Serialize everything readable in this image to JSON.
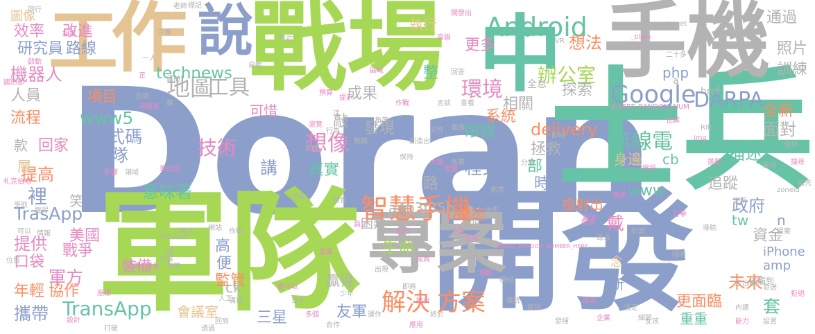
{
  "image": {
    "type": "word-cloud",
    "palette": [
      "#8c9fcb",
      "#a6d855",
      "#66c3a5",
      "#fc8d62",
      "#e78ac3",
      "#e5c494",
      "#b3b3b3",
      "#ffd92f"
    ]
  },
  "words": [
    {
      "text": "Doran",
      "color": "#8c9fcb",
      "rot": 0
    },
    {
      "text": "士兵",
      "color": "#66c3a5",
      "rot": 0
    },
    {
      "text": "軍隊",
      "color": "#a6d855",
      "rot": 0
    },
    {
      "text": "開發",
      "color": "#8c9fcb",
      "rot": 0
    },
    {
      "text": "戰場",
      "color": "#a6d855",
      "rot": 0
    },
    {
      "text": "手機",
      "color": "#b3b3b3",
      "rot": 0
    },
    {
      "text": "中",
      "color": "#66c3a5",
      "rot": 0
    },
    {
      "text": "專案",
      "color": "#b3b3b3",
      "rot": 0
    },
    {
      "text": "作",
      "color": "#e5c494",
      "rot": 0
    },
    {
      "text": "說",
      "color": "#8c9fcb",
      "rot": 0
    },
    {
      "text": "工",
      "color": "#e5c494",
      "rot": 0
    },
    {
      "text": "智慧",
      "color": "#fc8d62",
      "rot": 0
    },
    {
      "text": "手機",
      "color": "#fc8d62",
      "rot": 0
    },
    {
      "text": "Android",
      "color": "#66c3a5",
      "rot": 0
    },
    {
      "text": "Google",
      "color": "#8c9fcb",
      "rot": 0
    },
    {
      "text": "DARPA",
      "color": "#8c9fcb",
      "rot": 0
    },
    {
      "text": "地圖",
      "color": "#b3b3b3",
      "rot": 0
    },
    {
      "text": "工具",
      "color": "#b3b3b3",
      "rot": 0
    },
    {
      "text": "環境",
      "color": "#e78ac3",
      "rot": 0
    },
    {
      "text": "辦公室",
      "color": "#a6d855",
      "rot": 0
    },
    {
      "text": "解決",
      "color": "#fc8d62",
      "rot": 0
    },
    {
      "text": "方案",
      "color": "#fc8d62",
      "rot": 0
    },
    {
      "text": "TrasApp",
      "color": "#8c9fcb",
      "rot": 0
    },
    {
      "text": "TransApp",
      "color": "#66c3a5",
      "rot": 0
    },
    {
      "text": "技術",
      "color": "#e78ac3",
      "rot": 0
    },
    {
      "text": "想像",
      "color": "#e78ac3",
      "rot": 0
    },
    {
      "text": "無線電",
      "color": "#66c3a5",
      "rot": 0
    },
    {
      "text": "項目",
      "color": "#fc8d62",
      "rot": 0
    },
    {
      "text": "www5",
      "color": "#66c3a5",
      "rot": 0
    },
    {
      "text": "程式碼",
      "color": "#8c9fcb",
      "rot": 0
    },
    {
      "text": "團隊",
      "color": "#8c9fcb",
      "rot": 0
    },
    {
      "text": "研究員",
      "color": "#8c9fcb",
      "rot": 0
    },
    {
      "text": "路線",
      "color": "#8c9fcb",
      "rot": 0
    },
    {
      "text": "效率",
      "color": "#e78ac3",
      "rot": 0
    },
    {
      "text": "改進",
      "color": "#e78ac3",
      "rot": 0
    },
    {
      "text": "機器人",
      "color": "#e78ac3",
      "rot": 0
    },
    {
      "text": "人員",
      "color": "#b3b3b3",
      "rot": 0
    },
    {
      "text": "流程",
      "color": "#fc8d62",
      "rot": 0
    },
    {
      "text": "technews",
      "color": "#66c3a5",
      "rot": 0
    },
    {
      "text": "成果",
      "color": "#b3b3b3",
      "rot": 0
    },
    {
      "text": "可惜",
      "color": "#e78ac3",
      "rot": 0
    },
    {
      "text": "發現",
      "color": "#b3b3b3",
      "rot": 0
    },
    {
      "text": "delivery",
      "color": "#fc8d62",
      "rot": 0
    },
    {
      "text": "描述",
      "color": "#66c3a5",
      "rot": 0
    },
    {
      "text": "面對",
      "color": "#b3b3b3",
      "rot": 0
    },
    {
      "text": "身邊",
      "color": "#e5c494",
      "rot": 0
    },
    {
      "text": "cb",
      "color": "#66c3a5",
      "rot": 0
    },
    {
      "text": "追蹤",
      "color": "#b3b3b3",
      "rot": 0
    },
    {
      "text": "程式",
      "color": "#8c9fcb",
      "rot": 0
    },
    {
      "text": "眼鏡",
      "color": "#66c3a5",
      "rot": 0
    },
    {
      "text": "拯救",
      "color": "#b3b3b3",
      "rot": 0
    },
    {
      "text": "講",
      "color": "#8c9fcb",
      "rot": 0
    },
    {
      "text": "真實",
      "color": "#66c3a5",
      "rot": 0
    },
    {
      "text": "意味著",
      "color": "#66c3a5",
      "rot": 0
    },
    {
      "text": "a4b3f35b",
      "color": "#b3b3b3",
      "rot": 0
    },
    {
      "text": "投射出",
      "color": "#fc8d62",
      "rot": 0
    },
    {
      "text": "提供",
      "color": "#e78ac3",
      "rot": 0
    },
    {
      "text": "美國",
      "color": "#e78ac3",
      "rot": 0
    },
    {
      "text": "戰爭",
      "color": "#e78ac3",
      "rot": 0
    },
    {
      "text": "口袋",
      "color": "#e78ac3",
      "rot": 0
    },
    {
      "text": "裝備",
      "color": "#e78ac3",
      "rot": 0
    },
    {
      "text": "軍方",
      "color": "#e78ac3",
      "rot": 0
    },
    {
      "text": "年輕",
      "color": "#fc8d62",
      "rot": 0
    },
    {
      "text": "協作",
      "color": "#fc8d62",
      "rot": 0
    },
    {
      "text": "攜帶",
      "color": "#8c9fcb",
      "rot": 0
    },
    {
      "text": "會議室",
      "color": "#e5c494",
      "rot": 0
    },
    {
      "text": "三星",
      "color": "#8c9fcb",
      "rot": 0
    },
    {
      "text": "友軍",
      "color": "#8c9fcb",
      "rot": 0
    },
    {
      "text": "生命",
      "color": "#a6d855",
      "rot": 0
    },
    {
      "text": "政府",
      "color": "#8c9fcb",
      "rot": 0
    },
    {
      "text": "資金",
      "color": "#b3b3b3",
      "rot": 0
    },
    {
      "text": "未來",
      "color": "#fc8d62",
      "rot": 0
    },
    {
      "text": "iPhone",
      "color": "#8c9fcb",
      "rot": 0
    },
    {
      "text": "amp",
      "color": "#8c9fcb",
      "rot": 0
    },
    {
      "text": "更面臨",
      "color": "#fc8d62",
      "rot": 0
    },
    {
      "text": "重重",
      "color": "#66c3a5",
      "rot": 0
    },
    {
      "text": "全新",
      "color": "#fc8d62",
      "rot": 0
    },
    {
      "text": "系統",
      "color": "#fc8d62",
      "rot": 0
    },
    {
      "text": "想法",
      "color": "#fc8d62",
      "rot": 0
    },
    {
      "text": "通過",
      "color": "#b3b3b3",
      "rot": 0
    },
    {
      "text": "照片",
      "color": "#b3b3b3",
      "rot": 0
    },
    {
      "text": "訓練",
      "color": "#b3b3b3",
      "rot": 0
    },
    {
      "text": "探索",
      "color": "#b3b3b3",
      "rot": 0
    },
    {
      "text": "相關",
      "color": "#b3b3b3",
      "rot": 0
    },
    {
      "text": "php",
      "color": "#8c9fcb",
      "rot": 0
    },
    {
      "text": "更多",
      "color": "#e78ac3",
      "rot": 0
    },
    {
      "text": "執行",
      "color": "#e5c494",
      "rot": 0
    },
    {
      "text": "困難",
      "color": "#b3b3b3",
      "rot": 0
    },
    {
      "text": "原因",
      "color": "#fc8d62",
      "rot": 0
    },
    {
      "text": "高",
      "color": "#8c9fcb",
      "rot": 0
    },
    {
      "text": "便",
      "color": "#8c9fcb",
      "rot": 0
    },
    {
      "text": "監管",
      "color": "#fc8d62",
      "rot": 0
    },
    {
      "text": "新",
      "color": "#8c9fcb",
      "rot": 0
    },
    {
      "text": "念",
      "color": "#e5c494",
      "rot": 0
    },
    {
      "text": "贏得",
      "color": "#b3b3b3",
      "rot": 0
    },
    {
      "text": "www",
      "color": "#66c3a5",
      "rot": 0
    },
    {
      "text": "tw",
      "color": "#66c3a5",
      "rot": 0
    },
    {
      "text": "n",
      "color": "#8c9fcb",
      "rot": 0
    },
    {
      "text": "ck",
      "color": "#b3b3b3",
      "rot": 0
    },
    {
      "text": "套",
      "color": "#66c3a5",
      "rot": 0
    },
    {
      "text": "裡",
      "color": "#8c9fcb",
      "rot": 0
    },
    {
      "text": "提高",
      "color": "#fc8d62",
      "rot": 0
    },
    {
      "text": "款",
      "color": "#b3b3b3",
      "rot": 0
    },
    {
      "text": "回家",
      "color": "#e78ac3",
      "rot": 0
    },
    {
      "text": "層",
      "color": "#e5c494",
      "rot": 0
    },
    {
      "text": "整",
      "color": "#66c3a5",
      "rot": 0
    },
    {
      "text": "部",
      "color": "#66c3a5",
      "rot": 0
    },
    {
      "text": "時",
      "color": "#8c9fcb",
      "rot": 0
    },
    {
      "text": "戴",
      "color": "#e78ac3",
      "rot": 0
    },
    {
      "text": "敲",
      "color": "#b3b3b3",
      "rot": 0
    },
    {
      "text": "路",
      "color": "#b3b3b3",
      "rot": 0
    },
    {
      "text": "笑",
      "color": "#b3b3b3",
      "rot": 0
    },
    {
      "text": "圖像",
      "color": "#e5c494",
      "rot": 0
    },
    {
      "text": "href",
      "color": "#b3b3b3",
      "rot": 0
    },
    {
      "text": "a",
      "color": "#b3b3b3",
      "rot": 0
    },
    {
      "text": "全息",
      "color": "#b3b3b3",
      "rot": 0
    },
    {
      "text": "INSERT_RANDOM_NUM",
      "color": "#e78ac3",
      "rot": 0
    },
    {
      "text": "INSERT_RANDOM_NUMBER_HERE",
      "color": "#e78ac3",
      "rot": 0
    },
    {
      "text": "Oculus",
      "color": "#b3b3b3",
      "rot": 0
    },
    {
      "text": "_blank",
      "color": "#e78ac3",
      "rot": 0
    },
    {
      "text": "target",
      "color": "#b3b3b3",
      "rot": 0
    },
    {
      "text": "zoneid",
      "color": "#b3b3b3",
      "rot": 0
    },
    {
      "text": "img",
      "color": "#e78ac3",
      "rot": 0
    },
    {
      "text": "Rift",
      "color": "#b3b3b3",
      "rot": 0
    },
    {
      "text": "VR",
      "color": "#b3b3b3",
      "rot": 0
    },
    {
      "text": "戰略",
      "color": "#b3b3b3",
      "rot": 0
    },
    {
      "text": "小型",
      "color": "#e78ac3",
      "rot": 0
    },
    {
      "text": "少年",
      "color": "#b3b3b3",
      "rot": 0
    },
    {
      "text": "創造出",
      "color": "#b3b3b3",
      "rot": 0
    },
    {
      "text": "走出來",
      "color": "#b3b3b3",
      "rot": 0
    },
    {
      "text": "二十多",
      "color": "#b3b3b3",
      "rot": 0
    },
    {
      "text": "接觸到",
      "color": "#b3b3b3",
      "rot": 0
    },
    {
      "text": "筆記型",
      "color": "#e78ac3",
      "rot": 0
    },
    {
      "text": "消費者",
      "color": "#e78ac3",
      "rot": 0
    },
    {
      "text": "國防部",
      "color": "#e78ac3",
      "rot": 0
    },
    {
      "text": "札克伯格",
      "color": "#e78ac3",
      "rot": 0
    },
    {
      "text": "預算",
      "color": "#e78ac3",
      "rot": 0
    },
    {
      "text": "打轉",
      "color": "#b3b3b3",
      "rot": 0
    },
    {
      "text": "老師",
      "color": "#b3b3b3",
      "rot": 0
    },
    {
      "text": "同行",
      "color": "#b3b3b3",
      "rot": 0
    },
    {
      "text": "開發出",
      "color": "#e78ac3",
      "rot": 0
    },
    {
      "text": "回答",
      "color": "#b3b3b3",
      "rot": 0
    },
    {
      "text": "相框",
      "color": "#e78ac3",
      "rot": 0
    },
    {
      "text": "啟動",
      "color": "#e78ac3",
      "rot": 0
    },
    {
      "text": "高級",
      "color": "#e78ac3",
      "rot": 0
    },
    {
      "text": "一人",
      "color": "#b3b3b3",
      "rot": 0
    },
    {
      "text": "正",
      "color": "#e78ac3",
      "rot": 0
    },
    {
      "text": "在哪",
      "color": "#b3b3b3",
      "rot": 0
    },
    {
      "text": "目前",
      "color": "#b3b3b3",
      "rot": 0
    },
    {
      "text": "言談",
      "color": "#b3b3b3",
      "rot": 0
    },
    {
      "text": "作戰",
      "color": "#e78ac3",
      "rot": 0
    },
    {
      "text": "難",
      "color": "#b3b3b3",
      "rot": 0
    },
    {
      "text": "活",
      "color": "#b3b3b3",
      "rot": 0
    },
    {
      "text": "行為",
      "color": "#b3b3b3",
      "rot": 0
    },
    {
      "text": "畫面",
      "color": "#b3b3b3",
      "rot": 0
    },
    {
      "text": "大腦",
      "color": "#e78ac3",
      "rot": 0
    },
    {
      "text": "電腦",
      "color": "#e78ac3",
      "rot": 0
    },
    {
      "text": "影響",
      "color": "#e78ac3",
      "rot": 0
    },
    {
      "text": "領域",
      "color": "#b3b3b3",
      "rot": 0
    },
    {
      "text": "改裝",
      "color": "#b3b3b3",
      "rot": 0
    },
    {
      "text": "分析",
      "color": "#b3b3b3",
      "rot": 0
    },
    {
      "text": "折扣",
      "color": "#e78ac3",
      "rot": 0
    },
    {
      "text": "部門",
      "color": "#e78ac3",
      "rot": 0
    },
    {
      "text": "網站",
      "color": "#b3b3b3",
      "rot": 0
    },
    {
      "text": "作戰",
      "color": "#b3b3b3",
      "rot": 0
    },
    {
      "text": "員工",
      "color": "#e78ac3",
      "rot": 0
    },
    {
      "text": "重要",
      "color": "#e78ac3",
      "rot": 0
    },
    {
      "text": "一個",
      "color": "#b3b3b3",
      "rot": 0
    },
    {
      "text": "專注",
      "color": "#b3b3b3",
      "rot": 0
    },
    {
      "text": "整合",
      "color": "#b3b3b3",
      "rot": 0
    },
    {
      "text": "結合",
      "color": "#b3b3b3",
      "rot": 0
    },
    {
      "text": "綠色",
      "color": "#e78ac3",
      "rot": 0
    },
    {
      "text": "數據",
      "color": "#b3b3b3",
      "rot": 0
    },
    {
      "text": "作業",
      "color": "#b3b3b3",
      "rot": 0
    },
    {
      "text": "出現",
      "color": "#b3b3b3",
      "rot": 0
    },
    {
      "text": "成員",
      "color": "#e78ac3",
      "rot": 0
    },
    {
      "text": "變得",
      "color": "#b3b3b3",
      "rot": 0
    },
    {
      "text": "可以",
      "color": "#b3b3b3",
      "rot": 0
    },
    {
      "text": "更可以",
      "color": "#e78ac3",
      "rot": 0
    },
    {
      "text": "恆定",
      "color": "#b3b3b3",
      "rot": 0
    },
    {
      "text": "細節",
      "color": "#b3b3b3",
      "rot": 0
    },
    {
      "text": "能力",
      "color": "#e78ac3",
      "rot": 0
    },
    {
      "text": "搭配",
      "color": "#e78ac3",
      "rot": 0
    },
    {
      "text": "嚴格",
      "color": "#b3b3b3",
      "rot": 0
    },
    {
      "text": "搜尋",
      "color": "#e78ac3",
      "rot": 0
    },
    {
      "text": "搶先",
      "color": "#b3b3b3",
      "rot": 0
    },
    {
      "text": "提案",
      "color": "#b3b3b3",
      "rot": 0
    },
    {
      "text": "拒絕",
      "color": "#e78ac3",
      "rot": 0
    },
    {
      "text": "爭取",
      "color": "#b3b3b3",
      "rot": 0
    },
    {
      "text": "企業",
      "color": "#e78ac3",
      "rot": 0
    },
    {
      "text": "溝通",
      "color": "#b3b3b3",
      "rot": 0
    },
    {
      "text": "合作",
      "color": "#b3b3b3",
      "rot": 0
    },
    {
      "text": "運作",
      "color": "#b3b3b3",
      "rot": 0
    },
    {
      "text": "應用",
      "color": "#e78ac3",
      "rot": 0
    },
    {
      "text": "發揮",
      "color": "#b3b3b3",
      "rot": 0
    },
    {
      "text": "實現",
      "color": "#b3b3b3",
      "rot": 0
    },
    {
      "text": "執法",
      "color": "#e78ac3",
      "rot": 0
    },
    {
      "text": "尋求",
      "color": "#b3b3b3",
      "rot": 0
    },
    {
      "text": "內建",
      "color": "#b3b3b3",
      "rot": 0
    },
    {
      "text": "設置",
      "color": "#b3b3b3",
      "rot": 0
    },
    {
      "text": "角落",
      "color": "#b3b3b3",
      "rot": 0
    },
    {
      "text": "女孩",
      "color": "#b3b3b3",
      "rot": 0
    },
    {
      "text": "瓦解",
      "color": "#e78ac3",
      "rot": 0
    },
    {
      "text": "優勢",
      "color": "#b3b3b3",
      "rot": 0
    },
    {
      "text": "打破",
      "color": "#b3b3b3",
      "rot": 0
    },
    {
      "text": "打擊",
      "color": "#e78ac3",
      "rot": 0
    },
    {
      "text": "防禦",
      "color": "#b3b3b3",
      "rot": 0
    },
    {
      "text": "地形",
      "color": "#b3b3b3",
      "rot": 0
    },
    {
      "text": "規劃",
      "color": "#e78ac3",
      "rot": 0
    },
    {
      "text": "模組",
      "color": "#b3b3b3",
      "rot": 0
    },
    {
      "text": "傳統",
      "color": "#b3b3b3",
      "rot": 0
    },
    {
      "text": "聯合",
      "color": "#e78ac3",
      "rot": 0
    },
    {
      "text": "商業",
      "color": "#b3b3b3",
      "rot": 0
    },
    {
      "text": "即將",
      "color": "#b3b3b3",
      "rot": 0
    },
    {
      "text": "推出",
      "color": "#e78ac3",
      "rot": 0
    },
    {
      "text": "終於",
      "color": "#b3b3b3",
      "rot": 0
    },
    {
      "text": "日本",
      "color": "#b3b3b3",
      "rot": 0
    },
    {
      "text": "多個",
      "color": "#e78ac3",
      "rot": 0
    },
    {
      "text": "透過",
      "color": "#b3b3b3",
      "rot": 0
    },
    {
      "text": "回到",
      "color": "#b3b3b3",
      "rot": 0
    },
    {
      "text": "瀏覽",
      "color": "#e78ac3",
      "rot": 0
    },
    {
      "text": "保持",
      "color": "#b3b3b3",
      "rot": 0
    },
    {
      "text": "需求",
      "color": "#b3b3b3",
      "rot": 0
    },
    {
      "text": "頻道",
      "color": "#e78ac3",
      "rot": 0
    },
    {
      "text": "隨時",
      "color": "#b3b3b3",
      "rot": 0
    },
    {
      "text": "發送",
      "color": "#b3b3b3",
      "rot": 0
    },
    {
      "text": "設計",
      "color": "#e78ac3",
      "rot": 0
    },
    {
      "text": "完善",
      "color": "#b3b3b3",
      "rot": 0
    },
    {
      "text": "自動",
      "color": "#b3b3b3",
      "rot": 0
    },
    {
      "text": "提示",
      "color": "#e78ac3",
      "rot": 0
    },
    {
      "text": "文件",
      "color": "#b3b3b3",
      "rot": 0
    },
    {
      "text": "分享",
      "color": "#b3b3b3",
      "rot": 0
    },
    {
      "text": "傳送",
      "color": "#e78ac3",
      "rot": 0
    },
    {
      "text": "導航",
      "color": "#b3b3b3",
      "rot": 0
    },
    {
      "text": "位置",
      "color": "#b3b3b3",
      "rot": 0
    },
    {
      "text": "座標",
      "color": "#e78ac3",
      "rot": 0
    },
    {
      "text": "標記",
      "color": "#b3b3b3",
      "rot": 0
    },
    {
      "text": "附近",
      "color": "#b3b3b3",
      "rot": 0
    },
    {
      "text": "區域",
      "color": "#e78ac3",
      "rot": 0
    },
    {
      "text": "查看",
      "color": "#b3b3b3",
      "rot": 0
    },
    {
      "text": "即時",
      "color": "#b3b3b3",
      "rot": 0
    },
    {
      "text": "資訊",
      "color": "#e78ac3",
      "rot": 0
    },
    {
      "text": "更新",
      "color": "#b3b3b3",
      "rot": 0
    },
    {
      "text": "情報",
      "color": "#b3b3b3",
      "rot": 0
    },
    {
      "text": "共享",
      "color": "#e78ac3",
      "rot": 0
    },
    {
      "text": "人工",
      "color": "#b3b3b3",
      "rot": 0
    }
  ]
}
